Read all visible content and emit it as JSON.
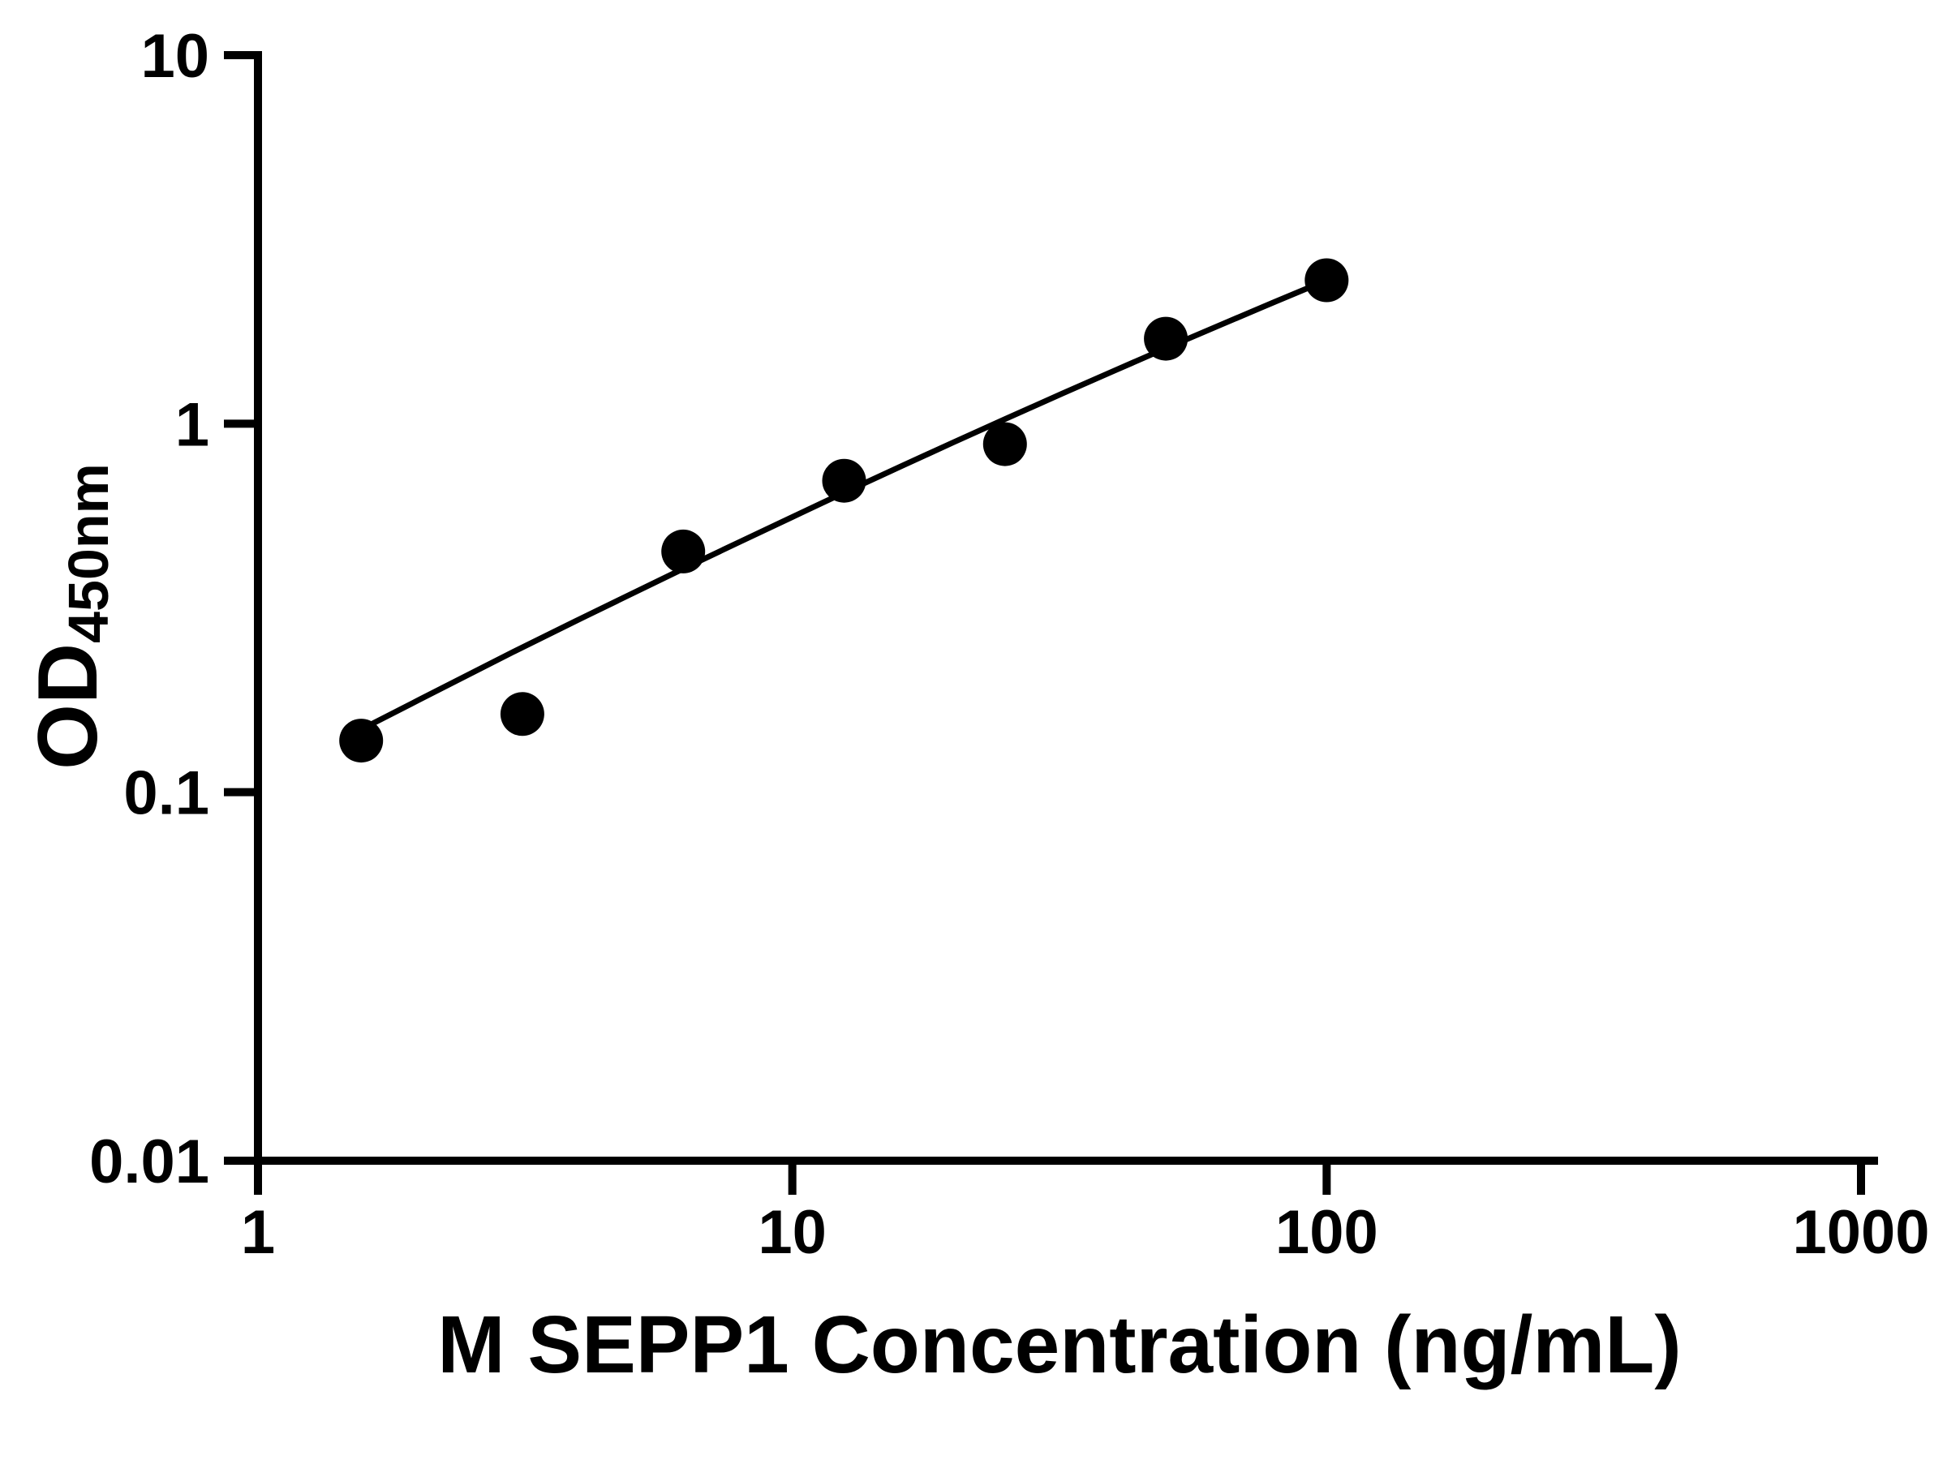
{
  "figure": {
    "background": "#ffffff"
  },
  "chart_data": {
    "type": "scatter",
    "title": "",
    "xlabel": "M SEPP1 Concentration (ng/mL)",
    "ylabel_main": "OD",
    "ylabel_sub": "450nm",
    "x_scale": "log",
    "y_scale": "log",
    "xlim": [
      1,
      1000
    ],
    "ylim": [
      0.01,
      10
    ],
    "x_ticks": [
      1,
      10,
      100,
      1000
    ],
    "x_tick_labels": [
      "1",
      "10",
      "100",
      "1000"
    ],
    "y_ticks": [
      0.01,
      0.1,
      1,
      10
    ],
    "y_tick_labels": [
      "0.01",
      "0.1",
      "1",
      "10"
    ],
    "grid": false,
    "legend": false,
    "axis_color": "#000000",
    "marker_color": "#000000",
    "line_color": "#000000",
    "series": [
      {
        "name": "standard-curve-points",
        "type": "scatter",
        "marker": "filled-circle",
        "x": [
          1.56,
          3.125,
          6.25,
          12.5,
          25,
          50,
          100
        ],
        "y": [
          0.138,
          0.163,
          0.45,
          0.7,
          0.88,
          1.7,
          2.45
        ]
      },
      {
        "name": "fit-line",
        "type": "line",
        "x": [
          1.56,
          2,
          3,
          4,
          6.25,
          8,
          10,
          12.5,
          16,
          20,
          25,
          32,
          40,
          50,
          64,
          80,
          100
        ],
        "y": [
          0.148,
          0.178,
          0.24,
          0.295,
          0.404,
          0.479,
          0.558,
          0.65,
          0.767,
          0.889,
          1.029,
          1.207,
          1.391,
          1.602,
          1.866,
          2.141,
          2.45
        ]
      }
    ]
  }
}
